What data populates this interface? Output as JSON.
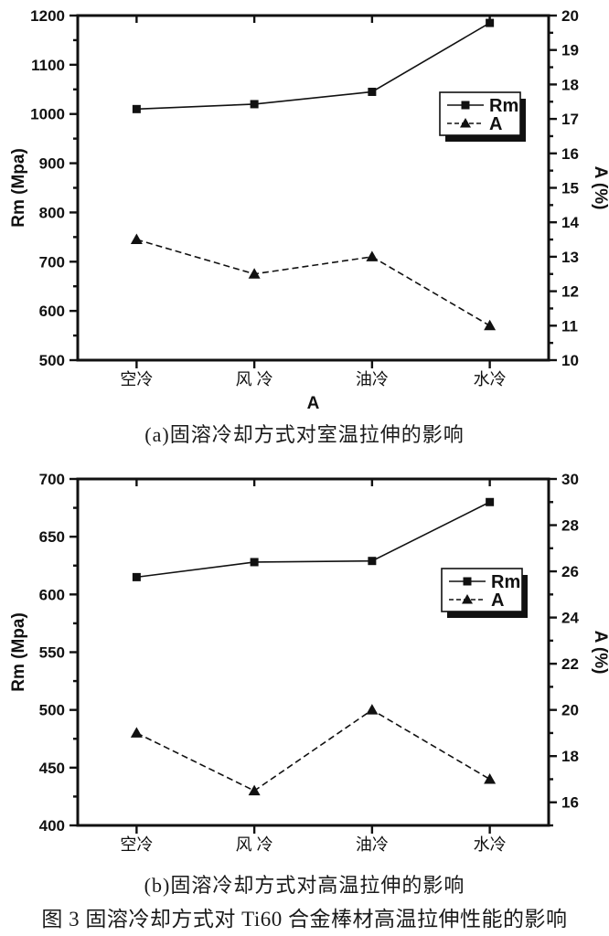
{
  "figure": {
    "caption": "图 3 固溶冷却方式对 Ti60 合金棒材高温拉伸性能的影响"
  },
  "colors": {
    "ink": "#111111",
    "background": "#ffffff"
  },
  "chart_data": [
    {
      "id": "a",
      "type": "line",
      "caption": "(a)固溶冷却方式对室温拉伸的影响",
      "categories": [
        "空冷",
        "风 冷",
        "油冷",
        "水冷"
      ],
      "xlabel": "A",
      "grid": false,
      "legend_position": "right-center",
      "axes": {
        "left": {
          "label": "Rm (Mpa)",
          "min": 500,
          "max": 1200,
          "major_step": 100,
          "minor_step": 50
        },
        "right": {
          "label": "A (%)",
          "min": 10,
          "max": 20,
          "major_step": 1,
          "minor_step": 0.5
        }
      },
      "series": [
        {
          "name": "Rm",
          "axis": "left",
          "marker": "square",
          "line_style": "solid",
          "values": [
            1010,
            1020,
            1045,
            1185
          ]
        },
        {
          "name": "A",
          "axis": "right",
          "marker": "triangle",
          "line_style": "dashed",
          "values": [
            13.5,
            12.5,
            13.0,
            11.0
          ]
        }
      ]
    },
    {
      "id": "b",
      "type": "line",
      "caption": "(b)固溶冷却方式对高温拉伸的影响",
      "categories": [
        "空冷",
        "风 冷",
        "油冷",
        "水冷"
      ],
      "xlabel": "",
      "grid": false,
      "legend_position": "right-center",
      "axes": {
        "left": {
          "label": "Rm (Mpa)",
          "min": 400,
          "max": 700,
          "major_step": 50,
          "minor_step": 25
        },
        "right": {
          "label": "A (%)",
          "min": 15,
          "max": 30,
          "major_step": 2,
          "minor_step": 1
        }
      },
      "series": [
        {
          "name": "Rm",
          "axis": "left",
          "marker": "square",
          "line_style": "solid",
          "values": [
            615,
            628,
            629,
            680
          ]
        },
        {
          "name": "A",
          "axis": "right",
          "marker": "triangle",
          "line_style": "dashed",
          "values": [
            19.0,
            16.5,
            20.0,
            17.0
          ]
        }
      ]
    }
  ]
}
